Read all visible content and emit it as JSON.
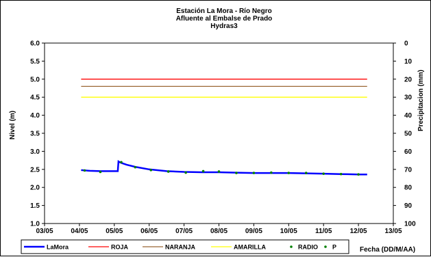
{
  "chart_data": {
    "type": "line",
    "title": [
      "Estación La Mora - Río Negro",
      "Afluente al Embalse de Prado",
      "Hydras3"
    ],
    "ylabel": "Nivel (m)",
    "y2label": "Precipitacion (mm)",
    "xlabel": "Fecha (DD/M/AA)",
    "x_ticks": [
      "03/05",
      "04/05",
      "05/05",
      "06/05",
      "07/05",
      "08/05",
      "09/05",
      "10/05",
      "11/05",
      "12/05",
      "13/05"
    ],
    "y_ticks": [
      "1.0",
      "1.5",
      "2.0",
      "2.5",
      "3.0",
      "3.5",
      "4.0",
      "4.5",
      "5.0",
      "5.5",
      "6.0"
    ],
    "y2_ticks": [
      "100",
      "90",
      "80",
      "70",
      "60",
      "50",
      "40",
      "30",
      "20",
      "10",
      "0"
    ],
    "xlim": [
      0,
      10
    ],
    "ylim": [
      1.0,
      6.0
    ],
    "y2lim": [
      100,
      0
    ],
    "legend_position": "bottom",
    "series": [
      {
        "name": "LaMora",
        "kind": "line",
        "color": "#0000FF",
        "x": [
          1.05,
          1.3,
          1.6,
          2.0,
          2.1,
          2.12,
          2.15,
          2.2,
          2.35,
          2.6,
          3.0,
          3.5,
          4.0,
          4.5,
          5.0,
          5.5,
          6.0,
          6.5,
          7.0,
          7.5,
          8.0,
          8.5,
          9.0,
          9.25
        ],
        "y": [
          2.48,
          2.46,
          2.45,
          2.45,
          2.45,
          2.72,
          2.7,
          2.68,
          2.63,
          2.57,
          2.5,
          2.45,
          2.43,
          2.42,
          2.42,
          2.41,
          2.4,
          2.4,
          2.4,
          2.39,
          2.38,
          2.37,
          2.36,
          2.36
        ]
      },
      {
        "name": "ROJA",
        "kind": "hline",
        "color": "#FF0000",
        "x": [
          1.05,
          9.25
        ],
        "y": [
          5.0,
          5.0
        ]
      },
      {
        "name": "NARANJA",
        "kind": "hline",
        "color": "#996633",
        "x": [
          1.05,
          9.25
        ],
        "y": [
          4.8,
          4.8
        ]
      },
      {
        "name": "AMARILLA",
        "kind": "hline",
        "color": "#FFFF00",
        "x": [
          1.05,
          9.25
        ],
        "y": [
          4.5,
          4.5
        ]
      },
      {
        "name": "RADIO",
        "kind": "points",
        "color": "#008000",
        "x": [
          1.15,
          1.6,
          2.2,
          2.6,
          3.05,
          3.55,
          4.05,
          4.55,
          5.0,
          5.5,
          6.0,
          6.5,
          7.0,
          7.5,
          8.0,
          8.5,
          9.0
        ],
        "y": [
          2.47,
          2.43,
          2.7,
          2.56,
          2.48,
          2.44,
          2.41,
          2.45,
          2.44,
          2.4,
          2.4,
          2.41,
          2.4,
          2.4,
          2.38,
          2.37,
          2.36
        ]
      },
      {
        "name": "P",
        "kind": "points",
        "color": "#008000",
        "x": [],
        "y": []
      }
    ]
  }
}
